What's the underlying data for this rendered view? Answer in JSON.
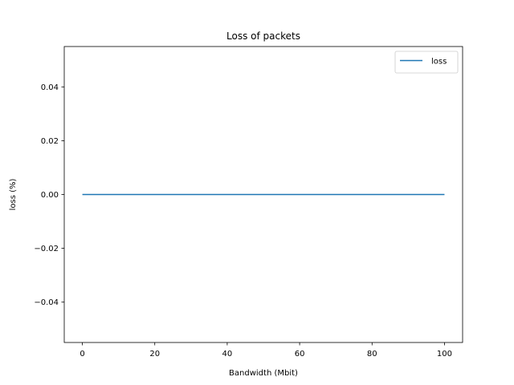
{
  "chart_data": {
    "type": "line",
    "title": "Loss of packets",
    "xlabel": "Bandwidth (Mbit)",
    "ylabel": "loss (%)",
    "xlim": [
      -5,
      105
    ],
    "ylim": [
      -0.055,
      0.055
    ],
    "xticks": [
      0,
      20,
      40,
      60,
      80,
      100
    ],
    "yticks": [
      -0.04,
      -0.02,
      0.0,
      0.02,
      0.04
    ],
    "xtick_labels": [
      "0",
      "20",
      "40",
      "60",
      "80",
      "100"
    ],
    "ytick_labels": [
      "−0.04",
      "−0.02",
      "0.00",
      "0.02",
      "0.04"
    ],
    "grid": false,
    "legend_position": "upper right",
    "series": [
      {
        "name": "loss",
        "color": "#1f77b4",
        "x": [
          0,
          10,
          20,
          30,
          40,
          50,
          60,
          70,
          80,
          90,
          100
        ],
        "y": [
          0,
          0,
          0,
          0,
          0,
          0,
          0,
          0,
          0,
          0,
          0
        ]
      }
    ]
  }
}
